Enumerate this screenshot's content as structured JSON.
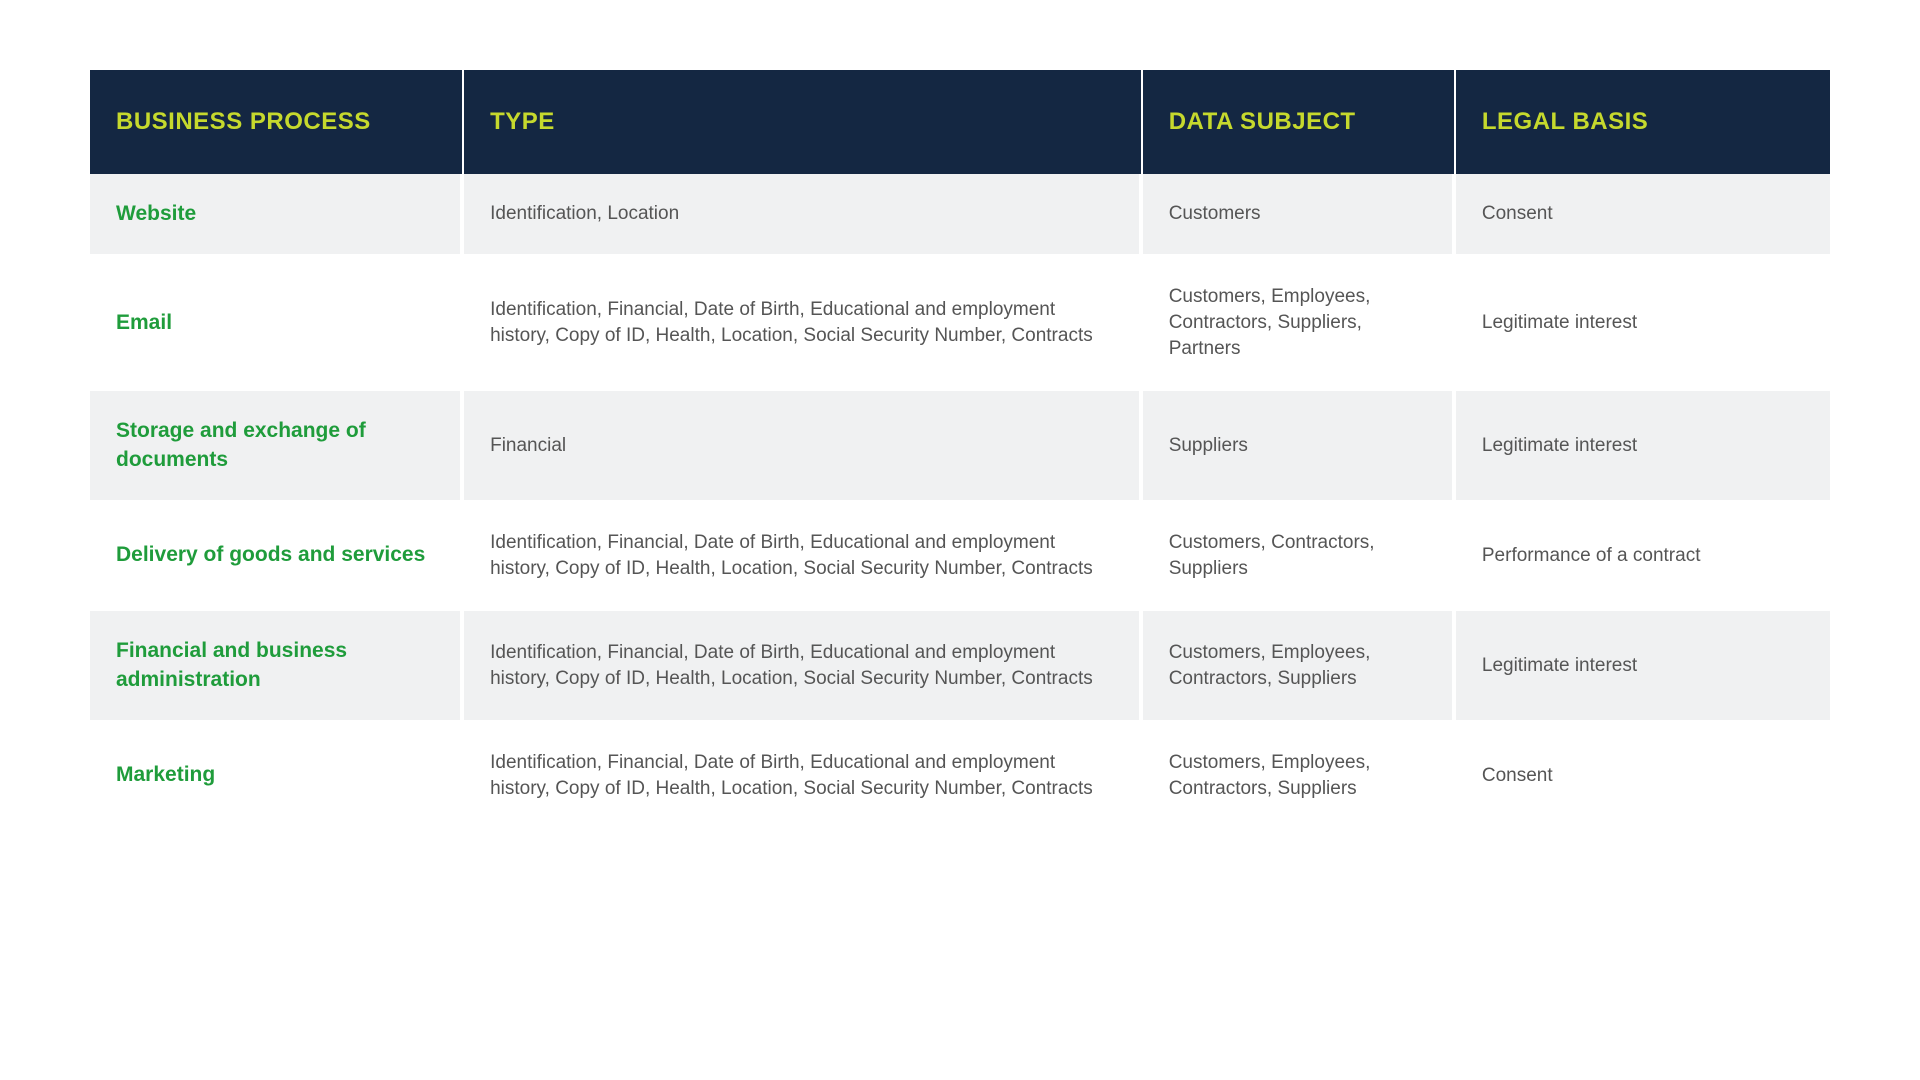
{
  "table": {
    "type": "table",
    "background_color": "#ffffff",
    "header": {
      "bg": "#142742",
      "fg": "#c6d92d",
      "fontsize": 24,
      "fontweight": 700
    },
    "columns": [
      {
        "label": "BUSINESS PROCESS",
        "width": "21.5%"
      },
      {
        "label": "TYPE",
        "width": "39%"
      },
      {
        "label": "DATA SUBJECT",
        "width": "18%"
      },
      {
        "label": "LEGAL BASIS",
        "width": "21.5%"
      }
    ],
    "row_colors": {
      "odd": "#f0f1f2",
      "even": "#ffffff"
    },
    "cell_fontsize": 19,
    "cell_text_color": "#555555",
    "process_col": {
      "color": "#1f9c3b",
      "fontsize": 21,
      "fontweight": 700
    },
    "row_separator_color": "#ffffff",
    "rows": [
      {
        "process": "Website",
        "type": "Identification, Location",
        "subject": "Customers",
        "basis": "Consent"
      },
      {
        "process": "Email",
        "type": "Identification, Financial, Date of Birth, Educational and employment history, Copy of ID, Health, Location, Social Security Number, Contracts",
        "subject": "Customers, Employees, Contractors, Suppliers, Partners",
        "basis": "Legitimate interest"
      },
      {
        "process": "Storage and exchange of documents",
        "type": "Financial",
        "subject": "Suppliers",
        "basis": "Legitimate interest"
      },
      {
        "process": "Delivery of goods and services",
        "type": "Identification, Financial, Date of Birth, Educational and employment history, Copy of ID, Health, Location, Social Security Number, Contracts",
        "subject": "Customers, Contractors, Suppliers",
        "basis": "Performance of a contract"
      },
      {
        "process": "Financial and business administration",
        "type": "Identification, Financial, Date of Birth, Educational and employment history, Copy of ID, Health, Location, Social Security Number, Contracts",
        "subject": "Customers, Employees, Contractors, Suppliers",
        "basis": "Legitimate interest"
      },
      {
        "process": "Marketing",
        "type": "Identification, Financial, Date of Birth, Educational and employment history, Copy of ID, Health, Location, Social Security Number, Contracts",
        "subject": "Customers, Employees, Contractors, Suppliers",
        "basis": "Consent"
      }
    ]
  }
}
